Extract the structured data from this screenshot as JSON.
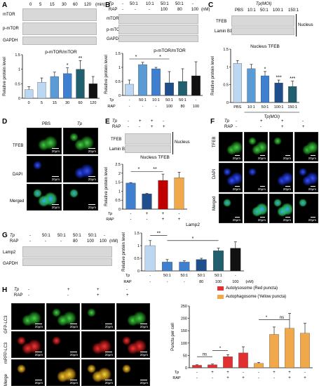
{
  "panels": {
    "A": {
      "label": "A",
      "lane_values": [
        "0",
        "5",
        "15",
        "30",
        "60",
        "120"
      ],
      "unit": "(min)",
      "bands": [
        "mTOR",
        "p-mTOR",
        "GAPDH"
      ],
      "chart_title": "p-mTOR/mTOR"
    },
    "B": {
      "label": "B",
      "tp_values": [
        "-",
        "50:1",
        "10:1",
        "50:1",
        "50:1",
        "-"
      ],
      "rap_values": [
        "-",
        "-",
        "-",
        "100",
        "80",
        "100"
      ],
      "unit": "(nM)",
      "row_tp": "Tp",
      "row_rap": "RAP",
      "bands": [
        "mTOR",
        "p-mTOR",
        "GAPDH"
      ],
      "chart_title": "p-mTOR/mTOR"
    },
    "C": {
      "label": "C",
      "header": "Tp(MOI)",
      "lanes": [
        "PBS",
        "10:1",
        "50:1",
        "100:1",
        "150:1"
      ],
      "bands": [
        "TFEB",
        "Lamin B1"
      ],
      "nucleus": "Nucleus",
      "chart_title": "Nucleus TFEB",
      "xgroup": "Tp(MOI)"
    },
    "D": {
      "label": "D",
      "cols": [
        "PBS",
        "Tp"
      ],
      "rows": [
        "TFEB",
        "DAPI",
        "Merged"
      ],
      "scale": "20μm"
    },
    "E": {
      "label": "E",
      "row_tp": "Tp",
      "row_rap": "RAP",
      "tp": [
        "-",
        "+",
        "+",
        "-"
      ],
      "rap": [
        "-",
        "-",
        "+",
        "+"
      ],
      "bands": [
        "TFEB",
        "Lamin B1"
      ],
      "nucleus": "Nucleus",
      "chart_title": "Nucleus TFEB"
    },
    "F": {
      "label": "F",
      "row_tp": "Tp",
      "row_rap": "RAP",
      "tp": [
        "-",
        "+",
        "+",
        "-"
      ],
      "rap": [
        "-",
        "-",
        "+",
        "+"
      ],
      "rows": [
        "TFEB",
        "DAPI",
        "Merged"
      ],
      "scale": "20μm"
    },
    "G": {
      "label": "G",
      "row_tp": "Tp",
      "row_rap": "RAP",
      "tp": [
        "-",
        "50:1",
        "50:1",
        "50:1",
        "50:1",
        "-"
      ],
      "rap": [
        "-",
        "-",
        "-",
        "80",
        "100",
        "100"
      ],
      "unit": "(nM)",
      "bands": [
        "Lamp2",
        "GAPDH"
      ],
      "chart_title": "Lamp2"
    },
    "H": {
      "label": "H",
      "row_tp": "Tp",
      "row_rap": "RAP",
      "tp": [
        "-",
        "+",
        "+",
        "-"
      ],
      "rap": [
        "-",
        "-",
        "+",
        "+"
      ],
      "rows": [
        "GFP-LC3",
        "mRFP-LC3",
        "Merge"
      ],
      "scale": "20μm",
      "legend": [
        "Autolysosome (Red puncta)",
        "Autophagosome (Yellow puncta)"
      ],
      "ylabel": "Puncta per cell",
      "ns": "ns"
    }
  },
  "common": {
    "ylabel": "Relative protein level",
    "star1": "*",
    "star2": "**",
    "star3": "***"
  },
  "colors": {
    "lightblue": "#bcd7f2",
    "midblue": "#5b9bd5",
    "blue": "#3f7fd0",
    "navy": "#1f4e8c",
    "teal": "#1f5f6e",
    "black": "#111111",
    "red": "#e23030",
    "orange": "#f0a84a",
    "darkred": "#c00000"
  },
  "chart_data": [
    {
      "panel": "A",
      "type": "bar",
      "title": "p-mTOR/mTOR",
      "ylabel": "Relative protein level",
      "categories": [
        "0",
        "5",
        "15",
        "30",
        "60",
        "120"
      ],
      "values": [
        0.3,
        0.55,
        0.75,
        0.85,
        1.0,
        0.5
      ],
      "errors": [
        0.1,
        0.15,
        0.15,
        0.2,
        0.3,
        0.25
      ],
      "sig": [
        "",
        "",
        "",
        "*",
        "**",
        ""
      ],
      "ylim": [
        0,
        1.5
      ],
      "yticks": [
        0,
        0.5,
        1,
        1.5
      ],
      "colors": [
        "#bcd7f2",
        "#bcd7f2",
        "#5b9bd5",
        "#3f7fd0",
        "#1f5f6e",
        "#111111"
      ]
    },
    {
      "panel": "B",
      "type": "bar",
      "title": "p-mTOR/mTOR",
      "ylabel": "Relative protein level",
      "categories": [
        "1",
        "2",
        "3",
        "4",
        "5",
        "6"
      ],
      "values": [
        0.4,
        1.1,
        0.95,
        0.45,
        0.5,
        0.7
      ],
      "errors": [
        0.15,
        0.08,
        0.05,
        0.4,
        0.45,
        0.5
      ],
      "ylim": [
        0,
        1.5
      ],
      "yticks": [
        0,
        0.5,
        1,
        1.5
      ],
      "colors": [
        "#bcd7f2",
        "#5b9bd5",
        "#3f7fd0",
        "#1f4e8c",
        "#1f5f6e",
        "#111111"
      ]
    },
    {
      "panel": "C",
      "type": "bar",
      "title": "Nucleus TFEB",
      "ylabel": "Relative protein level",
      "categories": [
        "PBS",
        "10:1",
        "50:1",
        "100:1",
        "150:1"
      ],
      "values": [
        1.1,
        0.95,
        0.75,
        0.55,
        0.45
      ],
      "errors": [
        0.08,
        0.12,
        0.12,
        0.08,
        0.15
      ],
      "sig": [
        "",
        "",
        "*",
        "***",
        "***"
      ],
      "ylim": [
        0,
        1.5
      ],
      "yticks": [
        0,
        0.5,
        1,
        1.5
      ],
      "colors": [
        "#bcd7f2",
        "#5b9bd5",
        "#3f7fd0",
        "#1f4e8c",
        "#1f5f6e"
      ]
    },
    {
      "panel": "E",
      "type": "bar",
      "title": "Nucleus TFEB",
      "ylabel": "Relative protein level",
      "categories": [
        "1",
        "2",
        "3",
        "4"
      ],
      "values": [
        1.45,
        0.85,
        1.6,
        1.75
      ],
      "errors": [
        0.03,
        0.03,
        0.35,
        0.3
      ],
      "ylim": [
        0,
        2.5
      ],
      "yticks": [
        0,
        0.5,
        1,
        1.5,
        2,
        2.5
      ],
      "colors": [
        "#3f7fd0",
        "#1f4e8c",
        "#c00000",
        "#f0a84a"
      ]
    },
    {
      "panel": "G",
      "type": "bar",
      "title": "Lamp2",
      "ylabel": "Relative protein level",
      "categories": [
        "1",
        "2",
        "3",
        "4",
        "5",
        "6"
      ],
      "values": [
        1.0,
        0.35,
        0.35,
        0.45,
        0.8,
        0.9
      ],
      "errors": [
        0.2,
        0.1,
        0.05,
        0.05,
        0.1,
        0.25
      ],
      "ylim": [
        0,
        1.5
      ],
      "yticks": [
        0,
        0.5,
        1,
        1.5
      ],
      "colors": [
        "#bcd7f2",
        "#3f7fd0",
        "#3f7fd0",
        "#1f4e8c",
        "#1f5f6e",
        "#111111"
      ]
    },
    {
      "panel": "H",
      "type": "bar",
      "ylabel": "Puncta per cell",
      "categories": [
        "1",
        "2",
        "3",
        "4"
      ],
      "series": [
        {
          "name": "Autolysosome (Red puncta)",
          "values": [
            10,
            12,
            45,
            60
          ],
          "errors": [
            2,
            3,
            8,
            25
          ]
        },
        {
          "name": "Autophagosome (Yellow puncta)",
          "values": [
            18,
            135,
            160,
            140
          ],
          "errors": [
            4,
            30,
            60,
            40
          ]
        }
      ],
      "ylim": [
        0,
        250
      ],
      "yticks": [
        0,
        50,
        100,
        150,
        200,
        250
      ],
      "colors": [
        "#e23030",
        "#f0a84a"
      ]
    }
  ]
}
